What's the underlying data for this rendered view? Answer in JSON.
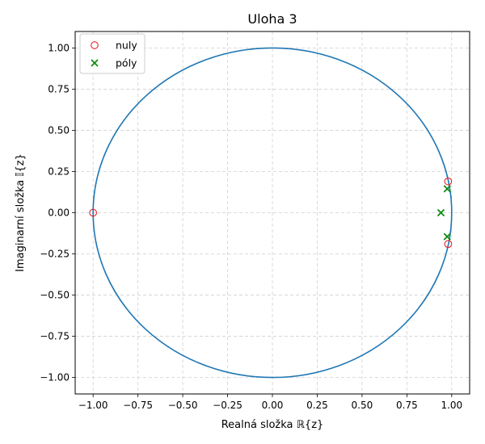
{
  "chart_data": {
    "type": "scatter",
    "title": "Uloha 3",
    "xlabel": "Realná složka ℝ{z}",
    "ylabel": "Imaginarní složka 𝕀{z}",
    "xlim": [
      -1.1,
      1.1
    ],
    "ylim": [
      -1.1,
      1.1
    ],
    "x_ticks": [
      -1.0,
      -0.75,
      -0.5,
      -0.25,
      0.0,
      0.25,
      0.5,
      0.75,
      1.0
    ],
    "y_ticks": [
      -1.0,
      -0.75,
      -0.5,
      -0.25,
      0.0,
      0.25,
      0.5,
      0.75,
      1.0
    ],
    "x_tick_labels": [
      "−1.00",
      "−0.75",
      "−0.50",
      "−0.25",
      "0.00",
      "0.25",
      "0.50",
      "0.75",
      "1.00"
    ],
    "y_tick_labels": [
      "−1.00",
      "−0.75",
      "−0.50",
      "−0.25",
      "0.00",
      "0.25",
      "0.50",
      "0.75",
      "1.00"
    ],
    "grid": true,
    "legend_position": "top-left",
    "unit_circle": {
      "radius": 1.0,
      "color": "#1f77b4"
    },
    "series": [
      {
        "name": "nuly",
        "marker": "circle-open",
        "color": "#e8232a",
        "points": [
          [
            -1.0,
            0.0
          ],
          [
            0.98,
            0.19
          ],
          [
            0.98,
            -0.19
          ]
        ]
      },
      {
        "name": "póly",
        "marker": "x",
        "color": "#138a13",
        "points": [
          [
            0.975,
            0.145
          ],
          [
            0.94,
            0.0
          ],
          [
            0.975,
            -0.145
          ]
        ]
      }
    ]
  }
}
